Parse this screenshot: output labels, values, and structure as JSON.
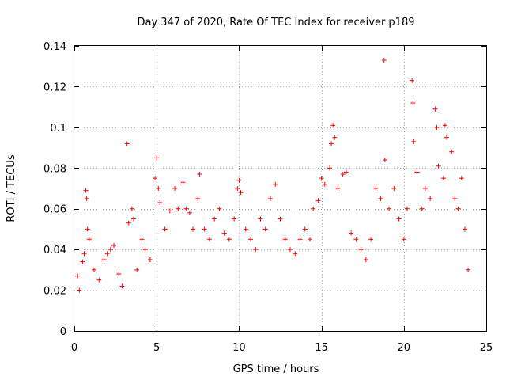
{
  "chart_data": {
    "type": "scatter",
    "title": "Day 347 of 2020, Rate Of TEC Index for receiver p189",
    "xlabel": "GPS time / hours",
    "ylabel": "ROTI / TECUs",
    "xlim": [
      0,
      25
    ],
    "ylim": [
      0,
      0.14
    ],
    "x_ticks": [
      0,
      5,
      10,
      15,
      20,
      25
    ],
    "x_tick_labels": [
      "0",
      "5",
      "10",
      "15",
      "20",
      "25"
    ],
    "y_ticks": [
      0,
      0.02,
      0.04,
      0.06,
      0.08,
      0.1,
      0.12,
      0.14
    ],
    "y_tick_labels": [
      "0",
      "0.02",
      "0.04",
      "0.06",
      "0.08",
      "0.1",
      "0.12",
      "0.14"
    ],
    "grid": true,
    "marker": "plus",
    "marker_color": "#ff0000",
    "series": [
      {
        "points": [
          [
            0.2,
            0.027
          ],
          [
            0.3,
            0.02
          ],
          [
            0.5,
            0.034
          ],
          [
            0.6,
            0.038
          ],
          [
            0.7,
            0.069
          ],
          [
            0.75,
            0.065
          ],
          [
            0.8,
            0.05
          ],
          [
            0.9,
            0.045
          ],
          [
            1.2,
            0.03
          ],
          [
            1.5,
            0.025
          ],
          [
            1.8,
            0.035
          ],
          [
            2.0,
            0.038
          ],
          [
            2.2,
            0.04
          ],
          [
            2.4,
            0.042
          ],
          [
            2.7,
            0.028
          ],
          [
            2.9,
            0.022
          ],
          [
            3.2,
            0.092
          ],
          [
            3.3,
            0.053
          ],
          [
            3.5,
            0.06
          ],
          [
            3.6,
            0.055
          ],
          [
            3.8,
            0.03
          ],
          [
            4.1,
            0.045
          ],
          [
            4.3,
            0.04
          ],
          [
            4.6,
            0.035
          ],
          [
            4.9,
            0.075
          ],
          [
            5.0,
            0.085
          ],
          [
            5.1,
            0.07
          ],
          [
            5.2,
            0.063
          ],
          [
            5.5,
            0.05
          ],
          [
            5.8,
            0.059
          ],
          [
            6.1,
            0.07
          ],
          [
            6.3,
            0.06
          ],
          [
            6.6,
            0.073
          ],
          [
            6.8,
            0.06
          ],
          [
            7.0,
            0.058
          ],
          [
            7.2,
            0.05
          ],
          [
            7.5,
            0.065
          ],
          [
            7.6,
            0.077
          ],
          [
            7.9,
            0.05
          ],
          [
            8.2,
            0.045
          ],
          [
            8.5,
            0.055
          ],
          [
            8.8,
            0.06
          ],
          [
            9.1,
            0.048
          ],
          [
            9.4,
            0.045
          ],
          [
            9.7,
            0.055
          ],
          [
            9.9,
            0.07
          ],
          [
            10.0,
            0.074
          ],
          [
            10.1,
            0.068
          ],
          [
            10.4,
            0.05
          ],
          [
            10.7,
            0.045
          ],
          [
            11.0,
            0.04
          ],
          [
            11.3,
            0.055
          ],
          [
            11.6,
            0.05
          ],
          [
            11.9,
            0.065
          ],
          [
            12.2,
            0.072
          ],
          [
            12.5,
            0.055
          ],
          [
            12.8,
            0.045
          ],
          [
            13.1,
            0.04
          ],
          [
            13.4,
            0.038
          ],
          [
            13.7,
            0.045
          ],
          [
            14.0,
            0.05
          ],
          [
            14.3,
            0.045
          ],
          [
            14.5,
            0.06
          ],
          [
            14.8,
            0.064
          ],
          [
            15.0,
            0.075
          ],
          [
            15.2,
            0.072
          ],
          [
            15.5,
            0.08
          ],
          [
            15.6,
            0.092
          ],
          [
            15.7,
            0.101
          ],
          [
            15.8,
            0.095
          ],
          [
            16.0,
            0.07
          ],
          [
            16.3,
            0.077
          ],
          [
            16.5,
            0.078
          ],
          [
            16.8,
            0.048
          ],
          [
            17.1,
            0.045
          ],
          [
            17.4,
            0.04
          ],
          [
            17.7,
            0.035
          ],
          [
            18.0,
            0.045
          ],
          [
            18.3,
            0.07
          ],
          [
            18.6,
            0.065
          ],
          [
            18.8,
            0.133
          ],
          [
            18.85,
            0.084
          ],
          [
            19.1,
            0.06
          ],
          [
            19.4,
            0.07
          ],
          [
            19.7,
            0.055
          ],
          [
            20.0,
            0.045
          ],
          [
            20.2,
            0.06
          ],
          [
            20.5,
            0.123
          ],
          [
            20.55,
            0.112
          ],
          [
            20.6,
            0.093
          ],
          [
            20.8,
            0.078
          ],
          [
            21.1,
            0.06
          ],
          [
            21.3,
            0.07
          ],
          [
            21.6,
            0.065
          ],
          [
            21.9,
            0.109
          ],
          [
            22.0,
            0.1
          ],
          [
            22.1,
            0.081
          ],
          [
            22.4,
            0.075
          ],
          [
            22.5,
            0.101
          ],
          [
            22.6,
            0.095
          ],
          [
            22.9,
            0.088
          ],
          [
            23.1,
            0.065
          ],
          [
            23.3,
            0.06
          ],
          [
            23.5,
            0.075
          ],
          [
            23.7,
            0.05
          ],
          [
            23.9,
            0.03
          ]
        ]
      }
    ]
  }
}
